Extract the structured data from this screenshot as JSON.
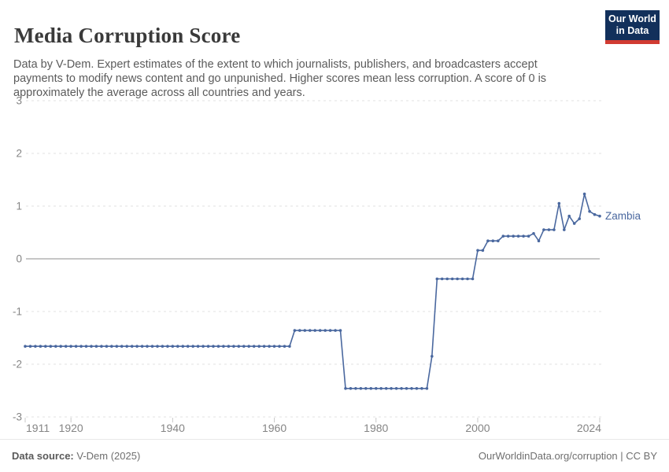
{
  "header": {
    "title": "Media Corruption Score",
    "subtitle": "Data by V-Dem. Expert estimates of the extent to which journalists, publishers, and broadcasters accept payments to modify news content and go unpunished. Higher scores mean less corruption. A score of 0 is approximately the average across all countries and years.",
    "logo": {
      "line1": "Our World",
      "line2": "in Data",
      "bg_color": "#12305b",
      "bar_color": "#d13b32"
    }
  },
  "footer": {
    "source_label": "Data source:",
    "source_value": " V-Dem (2025)",
    "credit": "OurWorldinData.org/corruption | CC BY"
  },
  "chart_data": {
    "type": "line",
    "title": "Media Corruption Score",
    "xlabel": "",
    "ylabel": "",
    "xlim": [
      1911,
      2024
    ],
    "ylim": [
      -3,
      3
    ],
    "x_ticks": [
      1911,
      1920,
      1940,
      1960,
      1980,
      2000,
      2024
    ],
    "y_ticks": [
      3,
      2,
      1,
      0,
      -1,
      -2,
      -3
    ],
    "grid": "horizontal dashed gridlines, solid line at zero",
    "legend": "series label at end of line",
    "series": [
      {
        "name": "Zambia",
        "color": "#4a689f",
        "start_year": 1911,
        "values": [
          -1.66,
          -1.66,
          -1.66,
          -1.66,
          -1.66,
          -1.66,
          -1.66,
          -1.66,
          -1.66,
          -1.66,
          -1.66,
          -1.66,
          -1.66,
          -1.66,
          -1.66,
          -1.66,
          -1.66,
          -1.66,
          -1.66,
          -1.66,
          -1.66,
          -1.66,
          -1.66,
          -1.66,
          -1.66,
          -1.66,
          -1.66,
          -1.66,
          -1.66,
          -1.66,
          -1.66,
          -1.66,
          -1.66,
          -1.66,
          -1.66,
          -1.66,
          -1.66,
          -1.66,
          -1.66,
          -1.66,
          -1.66,
          -1.66,
          -1.66,
          -1.66,
          -1.66,
          -1.66,
          -1.66,
          -1.66,
          -1.66,
          -1.66,
          -1.66,
          -1.66,
          -1.66,
          -1.36,
          -1.36,
          -1.36,
          -1.36,
          -1.36,
          -1.36,
          -1.36,
          -1.36,
          -1.36,
          -1.36,
          -2.46,
          -2.46,
          -2.46,
          -2.46,
          -2.46,
          -2.46,
          -2.46,
          -2.46,
          -2.46,
          -2.46,
          -2.46,
          -2.46,
          -2.46,
          -2.46,
          -2.46,
          -2.46,
          -2.46,
          -1.85,
          -0.38,
          -0.38,
          -0.38,
          -0.38,
          -0.38,
          -0.38,
          -0.38,
          -0.38,
          0.16,
          0.16,
          0.34,
          0.34,
          0.34,
          0.43,
          0.43,
          0.43,
          0.43,
          0.43,
          0.43,
          0.48,
          0.34,
          0.55,
          0.55,
          0.55,
          1.05,
          0.55,
          0.81,
          0.67,
          0.76,
          1.23,
          0.9,
          0.84,
          0.81
        ]
      }
    ]
  },
  "style": {
    "grid_color": "#e2e2e2",
    "zero_line_color": "#a3a3a3",
    "tick_color": "#c9c9c9",
    "axis_text_color": "#858585"
  }
}
